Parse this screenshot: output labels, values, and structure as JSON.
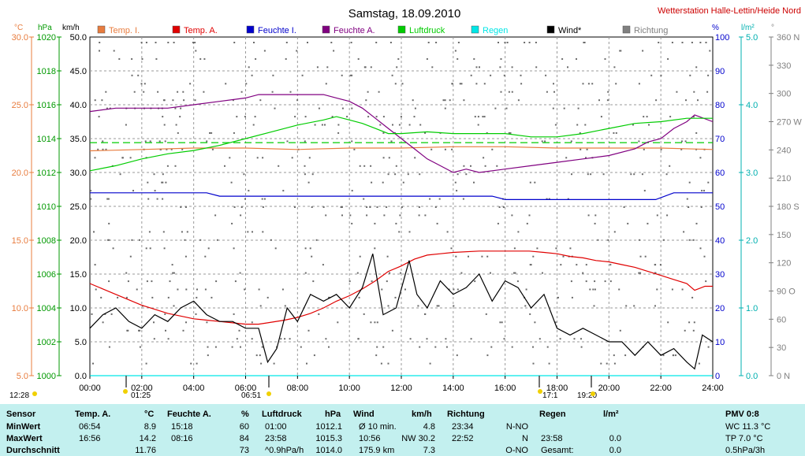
{
  "title": "Samstag, 18.09.2010",
  "station": "Wetterstation Halle-Lettin/Heide Nord",
  "units": {
    "celsius": "°C",
    "hpa": "hPa",
    "kmh": "km/h",
    "pct": "%",
    "lm2": "l/m²",
    "deg": "°"
  },
  "legend": [
    {
      "label": "Temp. I.",
      "color": "#e87c3e"
    },
    {
      "label": "Temp. A.",
      "color": "#e00000"
    },
    {
      "label": "Feuchte I.",
      "color": "#0000cc"
    },
    {
      "label": "Feuchte A.",
      "color": "#800080"
    },
    {
      "label": "Luftdruck",
      "color": "#00cc00"
    },
    {
      "label": "Regen",
      "color": "#00e6e6"
    },
    {
      "label": "Wind*",
      "color": "#000000"
    },
    {
      "label": "Richtung",
      "color": "#808080"
    }
  ],
  "chart_data": {
    "type": "line",
    "x_ticks": [
      "00:00",
      "02:00",
      "04:00",
      "06:00",
      "08:00",
      "10:00",
      "12:00",
      "14:00",
      "16:00",
      "18:00",
      "20:00",
      "22:00",
      "24:00"
    ],
    "axes": {
      "temp": {
        "ticks": [
          "30.0",
          "25.0",
          "20.0",
          "15.0",
          "10.0",
          "5.0"
        ],
        "range": [
          5,
          30
        ]
      },
      "pressure": {
        "ticks": [
          "1020",
          "1018",
          "1016",
          "1014",
          "1012",
          "1010",
          "1008",
          "1006",
          "1004",
          "1002",
          "1000"
        ],
        "range": [
          1000,
          1020
        ]
      },
      "wind": {
        "ticks": [
          "50.0",
          "45.0",
          "40.0",
          "35.0",
          "30.0",
          "25.0",
          "20.0",
          "15.0",
          "10.0",
          "5.0",
          "0.0"
        ],
        "range": [
          0,
          50
        ]
      },
      "humidity": {
        "ticks": [
          "100",
          "90",
          "80",
          "70",
          "60",
          "50",
          "40",
          "30",
          "20",
          "10",
          "0"
        ],
        "range": [
          0,
          100
        ]
      },
      "rain": {
        "ticks": [
          "5.0",
          "4.0",
          "3.0",
          "2.0",
          "1.0",
          "0.0"
        ],
        "range": [
          0,
          5
        ]
      },
      "direction": {
        "ticks": [
          "360 N",
          "330",
          "300",
          "270 W",
          "240",
          "210",
          "180 S",
          "150",
          "120",
          "90 O",
          "60",
          "30",
          "0 N"
        ],
        "range": [
          0,
          360
        ]
      }
    },
    "series": [
      {
        "name": "Temp. I.",
        "axis": "temp",
        "x": [
          0,
          2,
          4,
          6,
          8,
          10,
          12,
          14,
          16,
          18,
          20,
          22,
          24
        ],
        "values": [
          21.6,
          21.7,
          21.8,
          21.8,
          21.7,
          21.8,
          21.8,
          21.9,
          21.9,
          21.8,
          21.8,
          21.8,
          21.7
        ]
      },
      {
        "name": "Temp. A.",
        "axis": "temp",
        "x": [
          0,
          0.5,
          1,
          1.5,
          2,
          2.5,
          3,
          3.5,
          4,
          4.5,
          5,
          5.5,
          6,
          6.5,
          6.85,
          7.5,
          8,
          8.5,
          9,
          9.5,
          10,
          10.5,
          11,
          11.5,
          12,
          12.5,
          13,
          13.5,
          14,
          15,
          16,
          16.93,
          17.5,
          18,
          18.5,
          19,
          19.5,
          20,
          20.5,
          21,
          21.5,
          22,
          22.5,
          23,
          23.3,
          23.7,
          24
        ],
        "values": [
          11.8,
          11.4,
          11.0,
          10.6,
          10.2,
          9.9,
          9.6,
          9.4,
          9.2,
          9.1,
          9.0,
          8.9,
          8.8,
          8.8,
          8.9,
          9.1,
          9.3,
          9.6,
          10.0,
          10.5,
          10.9,
          11.4,
          12.0,
          12.7,
          13.1,
          13.6,
          13.9,
          14.0,
          14.1,
          14.2,
          14.2,
          14.2,
          14.1,
          14.0,
          13.8,
          13.7,
          13.5,
          13.4,
          13.2,
          13.0,
          12.7,
          12.4,
          12.1,
          11.8,
          11.3,
          11.6,
          11.6
        ]
      },
      {
        "name": "Feuchte I.",
        "axis": "humidity",
        "x": [
          0,
          4.5,
          5,
          6,
          7,
          8,
          10,
          12,
          14,
          15.5,
          16,
          18,
          20,
          21.8,
          22.5,
          24
        ],
        "values": [
          54,
          54,
          53,
          53,
          53,
          53,
          53,
          53,
          53,
          53,
          52,
          52,
          52,
          52,
          54,
          54
        ]
      },
      {
        "name": "Feuchte A.",
        "axis": "humidity",
        "x": [
          0,
          1,
          2,
          3,
          4,
          5,
          6,
          6.5,
          7,
          8,
          9,
          9.5,
          10,
          10.5,
          11,
          11.5,
          12,
          12.5,
          13,
          13.5,
          14,
          14.5,
          15,
          16,
          17,
          18,
          19,
          20,
          21,
          21.5,
          22,
          22.5,
          23,
          23.3,
          24
        ],
        "values": [
          78,
          79,
          79,
          79,
          80,
          81,
          82,
          83,
          83,
          83,
          83,
          82,
          81,
          79,
          76,
          73,
          70,
          67,
          64,
          62,
          60,
          61,
          60,
          61,
          62,
          63,
          64,
          65,
          67,
          69,
          70,
          73,
          75,
          77,
          75
        ]
      },
      {
        "name": "Luftdruck",
        "axis": "pressure",
        "x": [
          0,
          1,
          2,
          3,
          4,
          5,
          6,
          7,
          8,
          9,
          9.5,
          10,
          10.5,
          11,
          11.5,
          12,
          13,
          14,
          15,
          16,
          17,
          18,
          19,
          20,
          21,
          22,
          23,
          24
        ],
        "values": [
          1012.1,
          1012.4,
          1012.8,
          1013.1,
          1013.3,
          1013.6,
          1014.0,
          1014.4,
          1014.8,
          1015.1,
          1015.3,
          1015.1,
          1014.9,
          1014.6,
          1014.3,
          1014.3,
          1014.4,
          1014.3,
          1014.3,
          1014.3,
          1014.1,
          1014.1,
          1014.3,
          1014.6,
          1014.9,
          1015.0,
          1015.2,
          1015.2
        ]
      },
      {
        "name": "Wind*",
        "axis": "wind",
        "x": [
          0,
          0.5,
          1,
          1.5,
          2,
          2.5,
          3,
          3.5,
          4,
          4.5,
          5,
          5.5,
          6,
          6.5,
          6.85,
          7.2,
          7.6,
          8,
          8.5,
          9,
          9.5,
          10,
          10.5,
          10.9,
          11.3,
          11.8,
          12.3,
          12.6,
          13,
          13.5,
          14,
          14.5,
          15,
          15.5,
          16,
          16.5,
          17,
          17.5,
          18,
          18.5,
          19,
          19.5,
          20,
          20.5,
          21,
          21.5,
          22,
          22.5,
          23,
          23.3,
          23.6,
          24
        ],
        "values": [
          7,
          9,
          10,
          8,
          7,
          9,
          8,
          10,
          11,
          9,
          8,
          8,
          7,
          7,
          2,
          4,
          10,
          8,
          12,
          11,
          12,
          10,
          13,
          18,
          9,
          10,
          17,
          12,
          10,
          14,
          12,
          13,
          15,
          11,
          14,
          13,
          10,
          12,
          7,
          6,
          7,
          6,
          5,
          5,
          3,
          5,
          3,
          4,
          2,
          1,
          6,
          5
        ]
      },
      {
        "name": "Regen",
        "axis": "rain",
        "x": [
          0,
          24
        ],
        "values": [
          0,
          0
        ]
      }
    ],
    "reference_lines": [
      {
        "axis": "temp",
        "value": 22.2,
        "color": "#00cc00",
        "style": "dashed"
      }
    ],
    "time_markers": [
      "12:28",
      "01:25",
      "06:51",
      "17:1",
      "19:20"
    ]
  },
  "table": {
    "headers": [
      "Sensor",
      "Temp. A.",
      "°C",
      "Feuchte A.",
      "%",
      "Luftdruck",
      "hPa",
      "Wind",
      "km/h",
      "Richtung",
      "Regen",
      "l/m²",
      "PMV 0:8"
    ],
    "rows": [
      {
        "label": "MinWert",
        "temp_time": "06:54",
        "temp_val": "8.9",
        "hum_time": "15:18",
        "hum_val": "60",
        "pres_time": "01:00",
        "pres_val": "1012.1",
        "wind_time": "Ø 10 min.",
        "wind_val": "4.8",
        "dir_time": "23:34",
        "dir_val": "N-NO",
        "rain_time": "",
        "rain_val": "",
        "pmv": "WC 11.3 °C"
      },
      {
        "label": "MaxWert",
        "temp_time": "16:56",
        "temp_val": "14.2",
        "hum_time": "08:16",
        "hum_val": "84",
        "pres_time": "23:58",
        "pres_val": "1015.3",
        "wind_time": "10:56",
        "wind_val": "NW 30.2",
        "dir_time": "22:52",
        "dir_val": "N",
        "rain_time": "23:58",
        "rain_val": "0.0",
        "pmv": "TP 7.0 °C"
      },
      {
        "label": "Durchschnitt",
        "temp_time": "",
        "temp_val": "11.76",
        "hum_time": "",
        "hum_val": "73",
        "pres_time": "^0.9hPa/h",
        "pres_val": "1014.0",
        "wind_time": "175.9 km",
        "wind_val": "7.3",
        "dir_time": "",
        "dir_val": "O-NO",
        "rain_time": "Gesamt:",
        "rain_val": "0.0",
        "pmv": "0.5hPa/3h"
      }
    ]
  }
}
